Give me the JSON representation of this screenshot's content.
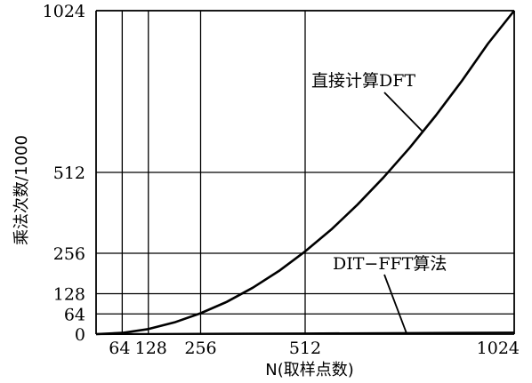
{
  "chart_data": {
    "type": "line",
    "xlabel": "N(取样点数)",
    "ylabel": "乘法次数/1000",
    "xlim": [
      0,
      1024
    ],
    "ylim": [
      0,
      1024
    ],
    "x_ticks": [
      64,
      128,
      256,
      512,
      1024
    ],
    "x_tick_labels": [
      "64",
      "128",
      "256",
      "512",
      "1024"
    ],
    "y_ticks": [
      0,
      64,
      128,
      256,
      512,
      1024
    ],
    "y_tick_labels": [
      "0",
      "64",
      "128",
      "256",
      "512",
      "1024"
    ],
    "grid": true,
    "series": [
      {
        "name": "直接计算DFT",
        "x": [
          0,
          64,
          128,
          192,
          256,
          320,
          384,
          448,
          512,
          576,
          640,
          704,
          768,
          832,
          896,
          960,
          1024
        ],
        "y": [
          0,
          4,
          16,
          37,
          66,
          102,
          147,
          200,
          262,
          331,
          410,
          496,
          590,
          692,
          802,
          920,
          1024
        ]
      },
      {
        "name": "DIT−FFT算法",
        "x": [
          0,
          64,
          128,
          256,
          512,
          768,
          1024
        ],
        "y": [
          0,
          0.2,
          0.45,
          1,
          2.3,
          3.7,
          5.1
        ]
      }
    ],
    "annotations": [
      {
        "text": "直接计算DFT",
        "target_series": 0,
        "target_x": 800
      },
      {
        "text": "DIT−FFT算法",
        "target_series": 1,
        "target_x": 760
      }
    ]
  }
}
